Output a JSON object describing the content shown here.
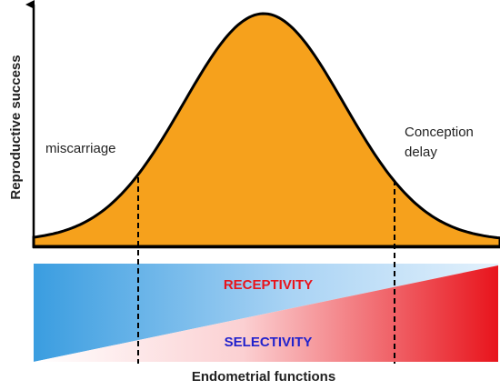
{
  "y_axis_label": "Reproductive success",
  "x_axis_label": "Endometrial functions",
  "left_label": "miscarriage",
  "right_label": [
    "Conception",
    "delay"
  ],
  "upper_band": "RECEPTIVITY",
  "lower_band": "SELECTIVITY"
}
